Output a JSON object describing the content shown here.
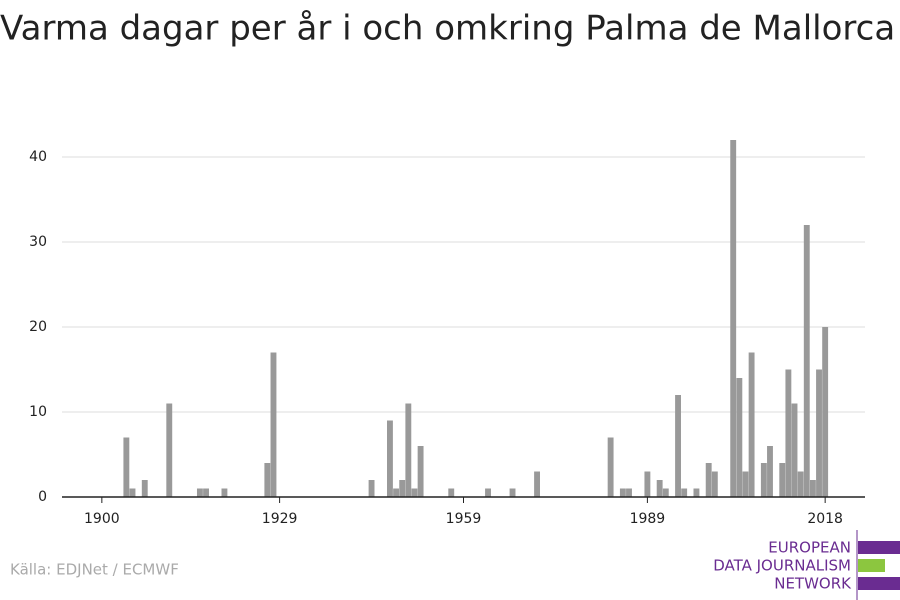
{
  "chart_data": {
    "type": "bar",
    "title": "Varma dagar per år i och omkring Palma de Mallorca",
    "x": [
      1904,
      1905,
      1907,
      1911,
      1916,
      1917,
      1920,
      1927,
      1928,
      1944,
      1947,
      1948,
      1949,
      1950,
      1951,
      1952,
      1957,
      1963,
      1967,
      1971,
      1983,
      1985,
      1986,
      1989,
      1991,
      1992,
      1994,
      1995,
      1997,
      1999,
      2000,
      2003,
      2004,
      2005,
      2006,
      2008,
      2009,
      2011,
      2012,
      2013,
      2014,
      2015,
      2016,
      2017,
      2018
    ],
    "values": [
      7,
      1,
      2,
      11,
      1,
      1,
      1,
      4,
      17,
      2,
      9,
      1,
      2,
      11,
      1,
      6,
      1,
      1,
      1,
      3,
      7,
      1,
      1,
      3,
      2,
      1,
      12,
      1,
      1,
      4,
      3,
      42,
      14,
      3,
      17,
      4,
      6,
      4,
      15,
      11,
      3,
      32,
      2,
      15,
      20
    ],
    "color": "#999999",
    "xlim": [
      1893.5,
      2024.5
    ],
    "xticks": [
      1900,
      1929,
      1959,
      1989,
      2018
    ],
    "ylim": [
      0,
      44
    ],
    "yticks": [
      0,
      10,
      20,
      30,
      40
    ],
    "grid": true
  },
  "source": "Källa: EDJNet / ECMWF",
  "logo": [
    "EUROPEAN",
    "DATA JOURNALISM",
    "NETWORK"
  ]
}
